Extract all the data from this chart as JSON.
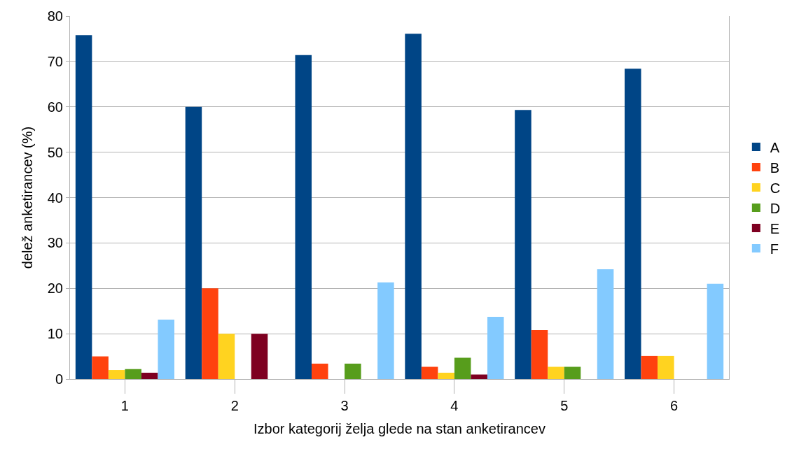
{
  "chart_data": {
    "type": "bar",
    "xlabel": "Izbor kategorij želja glede na stan anketirancev",
    "ylabel": "delež anketirancev (%)",
    "categories": [
      "1",
      "2",
      "3",
      "4",
      "5",
      "6"
    ],
    "series": [
      {
        "name": "A",
        "color": "#004586",
        "values": [
          75.8,
          60,
          71.4,
          76.1,
          59.3,
          68.4
        ]
      },
      {
        "name": "B",
        "color": "#ff420e",
        "values": [
          5.0,
          20,
          3.4,
          2.7,
          10.8,
          5.1
        ]
      },
      {
        "name": "C",
        "color": "#ffd320",
        "values": [
          2.0,
          10,
          0,
          1.4,
          2.7,
          5.1
        ]
      },
      {
        "name": "D",
        "color": "#579d1c",
        "values": [
          2.2,
          0,
          3.4,
          4.7,
          2.7,
          0
        ]
      },
      {
        "name": "E",
        "color": "#7e0021",
        "values": [
          1.4,
          10,
          0,
          1.0,
          0,
          0
        ]
      },
      {
        "name": "F",
        "color": "#83caff",
        "values": [
          13.1,
          0,
          21.3,
          13.7,
          24.2,
          21.0
        ]
      }
    ],
    "ylim": [
      0,
      80
    ],
    "yticks": [
      0,
      10,
      20,
      30,
      40,
      50,
      60,
      70,
      80
    ],
    "grid": "y",
    "legend": "right"
  }
}
